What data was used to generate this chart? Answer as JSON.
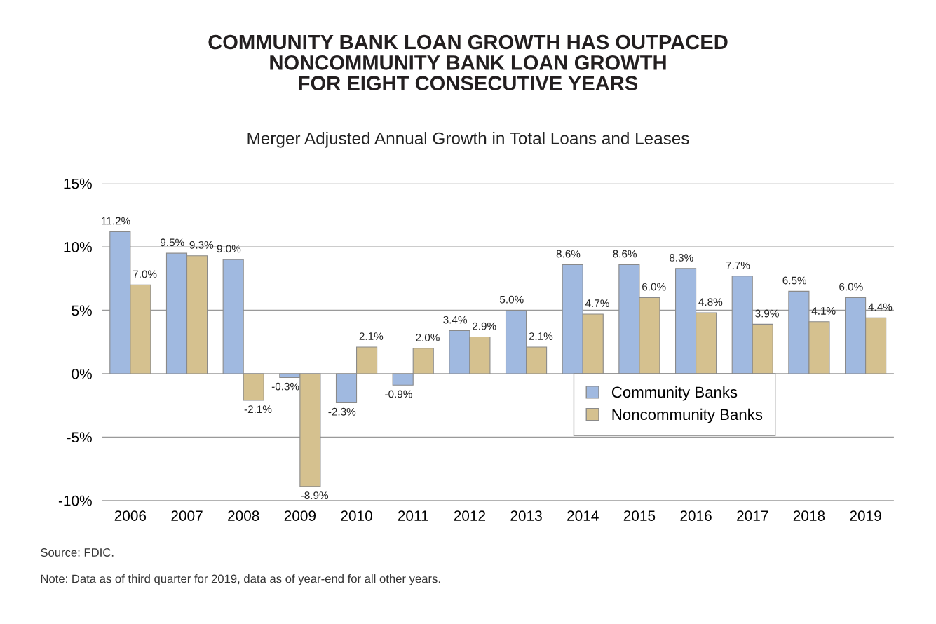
{
  "chart_data": {
    "type": "bar",
    "title": "COMMUNITY BANK LOAN GROWTH HAS OUTPACED\nNONCOMMUNITY BANK LOAN GROWTH\nFOR EIGHT CONSECUTIVE YEARS",
    "subtitle": "Merger Adjusted Annual Growth in Total Loans and Leases",
    "categories": [
      "2006",
      "2007",
      "2008",
      "2009",
      "2010",
      "2011",
      "2012",
      "2013",
      "2014",
      "2015",
      "2016",
      "2017",
      "2018",
      "2019"
    ],
    "series": [
      {
        "name": "Community Banks",
        "color": "#a0b9e0",
        "values": [
          11.2,
          9.5,
          9.0,
          -0.3,
          -2.3,
          -0.9,
          3.4,
          5.0,
          8.6,
          8.6,
          8.3,
          7.7,
          6.5,
          6.0
        ],
        "value_labels": [
          "11.2%",
          "9.5%",
          "9.0%",
          "-0.3%",
          "-2.3%",
          "-0.9%",
          "3.4%",
          "5.0%",
          "8.6%",
          "8.6%",
          "8.3%",
          "7.7%",
          "6.5%",
          "6.0%"
        ]
      },
      {
        "name": "Noncommunity Banks",
        "color": "#d5c18f",
        "values": [
          7.0,
          9.3,
          -2.1,
          -8.9,
          2.1,
          2.0,
          2.9,
          2.1,
          4.7,
          6.0,
          4.8,
          3.9,
          4.1,
          4.4
        ],
        "value_labels": [
          "7.0%",
          "9.3%",
          "-2.1%",
          "-8.9%",
          "2.1%",
          "2.0%",
          "2.9%",
          "2.1%",
          "4.7%",
          "6.0%",
          "4.8%",
          "3.9%",
          "4.1%",
          "4.4%"
        ]
      }
    ],
    "ylim": [
      -10,
      15
    ],
    "yticks": [
      {
        "value": -10,
        "label": "-10%"
      },
      {
        "value": -5,
        "label": "-5%"
      },
      {
        "value": 0,
        "label": "0%"
      },
      {
        "value": 5,
        "label": "5%"
      },
      {
        "value": 10,
        "label": "10%"
      },
      {
        "value": 15,
        "label": "15%"
      }
    ],
    "grid": "y",
    "legend": "bottom right",
    "annotations": [
      "Source: FDIC.",
      "Note: Data as of third quarter for 2019, data as of year-end for all other years."
    ]
  }
}
